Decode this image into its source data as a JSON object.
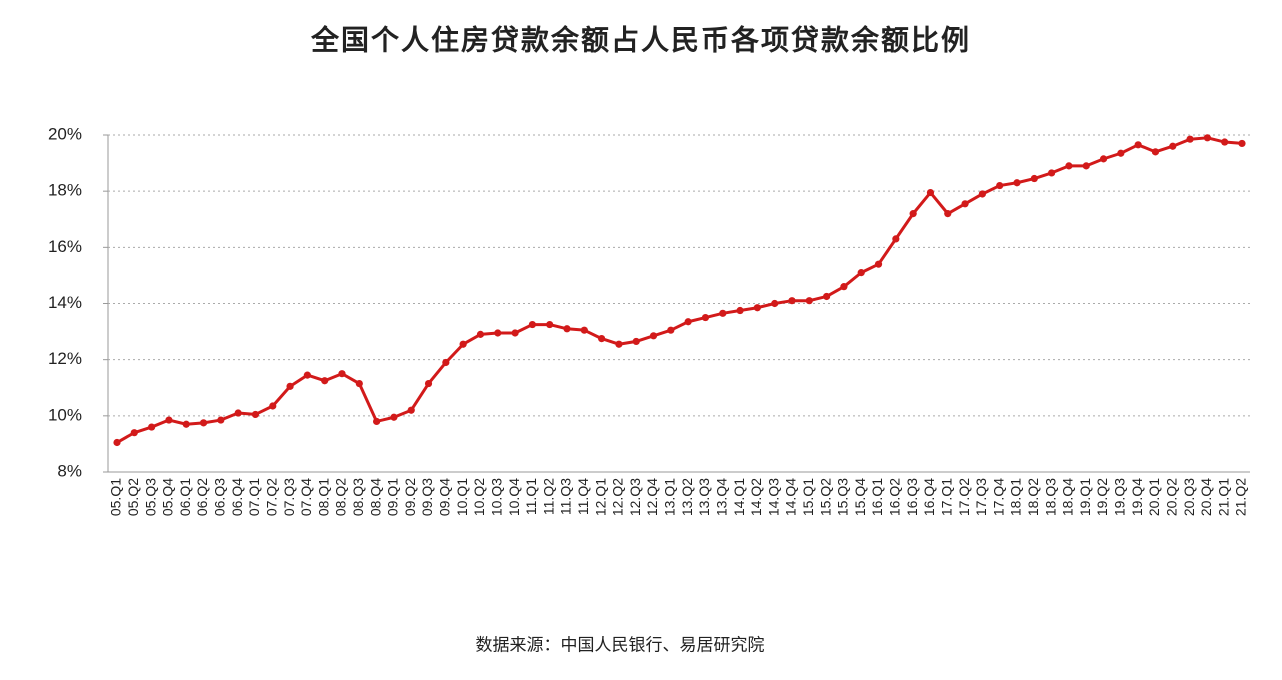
{
  "chart_data": {
    "type": "line",
    "title": "全国个人住房贷款余额占人民币各项贷款余额比例",
    "source": "数据来源：中国人民银行、易居研究院",
    "categories": [
      "05.Q1",
      "05.Q2",
      "05.Q3",
      "05.Q4",
      "06.Q1",
      "06.Q2",
      "06.Q3",
      "06.Q4",
      "07.Q1",
      "07.Q2",
      "07.Q3",
      "07.Q4",
      "08.Q1",
      "08.Q2",
      "08.Q3",
      "08.Q4",
      "09.Q1",
      "09.Q2",
      "09.Q3",
      "09.Q4",
      "10.Q1",
      "10.Q2",
      "10.Q3",
      "10.Q4",
      "11.Q1",
      "11.Q2",
      "11.Q3",
      "11.Q4",
      "12.Q1",
      "12.Q2",
      "12.Q3",
      "12.Q4",
      "13.Q1",
      "13.Q2",
      "13.Q3",
      "13.Q4",
      "14.Q1",
      "14.Q2",
      "14.Q3",
      "14.Q4",
      "15.Q1",
      "15.Q2",
      "15.Q3",
      "15.Q4",
      "16.Q1",
      "16.Q2",
      "16.Q3",
      "16.Q4",
      "17.Q1",
      "17.Q2",
      "17.Q3",
      "17.Q4",
      "18.Q1",
      "18.Q2",
      "18.Q3",
      "18.Q4",
      "19.Q1",
      "19.Q2",
      "19.Q3",
      "19.Q4",
      "20.Q1",
      "20.Q2",
      "20.Q3",
      "20.Q4",
      "21.Q1",
      "21.Q2"
    ],
    "values": [
      9.05,
      9.4,
      9.6,
      9.85,
      9.7,
      9.75,
      9.85,
      10.1,
      10.05,
      10.35,
      11.05,
      11.45,
      11.25,
      11.5,
      11.15,
      9.8,
      9.95,
      10.2,
      11.15,
      11.9,
      12.55,
      12.9,
      12.95,
      12.95,
      13.25,
      13.25,
      13.1,
      13.05,
      12.75,
      12.55,
      12.65,
      12.85,
      13.05,
      13.35,
      13.5,
      13.65,
      13.75,
      13.85,
      14.0,
      14.1,
      14.1,
      14.25,
      14.6,
      15.1,
      15.4,
      16.3,
      17.2,
      17.95,
      17.2,
      17.55,
      17.9,
      18.2,
      18.3,
      18.45,
      18.65,
      18.9,
      18.9,
      19.15,
      19.35,
      19.65,
      19.4,
      19.6,
      19.85,
      19.9,
      19.75,
      19.7
    ],
    "color": "#d21a1a",
    "ylim": [
      8,
      20
    ],
    "yticks": [
      {
        "value": 8,
        "label": "8%"
      },
      {
        "value": 10,
        "label": "10%"
      },
      {
        "value": 12,
        "label": "12%"
      },
      {
        "value": 14,
        "label": "14%"
      },
      {
        "value": 16,
        "label": "16%"
      },
      {
        "value": 18,
        "label": "18%"
      },
      {
        "value": 20,
        "label": "20%"
      }
    ],
    "grid": true
  }
}
